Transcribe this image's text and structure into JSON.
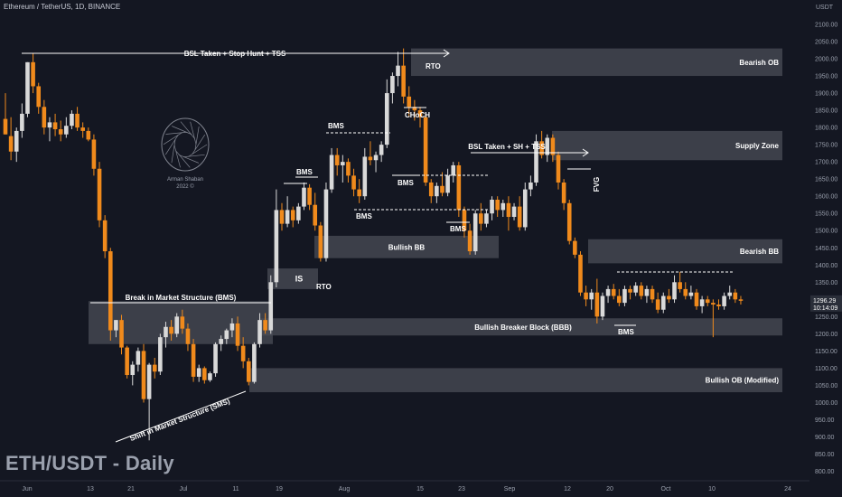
{
  "header": {
    "symbol_line": "Ethereum / TetherUS, 1D, BINANCE",
    "watermark": "ETH/USDT - Daily",
    "logo_name": "Arman Shaban",
    "logo_year": "2022 ©"
  },
  "colors": {
    "background": "#141722",
    "bull": "#d9d9d9",
    "bear": "#f08a1c",
    "zone": "#4a4d57",
    "text": "#ffffff",
    "axis_text": "#9aa0ad"
  },
  "chart_data": {
    "type": "candlestick",
    "currency_label": "USDT",
    "ylim": [
      780,
      2170
    ],
    "y_ticks": [
      800,
      850,
      900,
      950,
      1000,
      1050,
      1100,
      1150,
      1200,
      1250,
      1300,
      1350,
      1400,
      1450,
      1500,
      1550,
      1600,
      1650,
      1700,
      1750,
      1800,
      1850,
      1900,
      1950,
      2000,
      2050,
      2100
    ],
    "current_price": "1296.29",
    "countdown": "10:14:09",
    "x_ticks": [
      "Jun",
      "13",
      "21",
      "Jul",
      "11",
      "19",
      "Aug",
      "15",
      "23",
      "Sep",
      "12",
      "20",
      "Oct",
      "10",
      "24"
    ],
    "candles": [
      {
        "o": 1825,
        "h": 1900,
        "l": 1780,
        "c": 1780
      },
      {
        "o": 1775,
        "h": 1830,
        "l": 1705,
        "c": 1730
      },
      {
        "o": 1730,
        "h": 1800,
        "l": 1700,
        "c": 1790
      },
      {
        "o": 1790,
        "h": 1870,
        "l": 1770,
        "c": 1840
      },
      {
        "o": 1840,
        "h": 1990,
        "l": 1830,
        "c": 1990
      },
      {
        "o": 1990,
        "h": 2015,
        "l": 1900,
        "c": 1920
      },
      {
        "o": 1920,
        "h": 1930,
        "l": 1840,
        "c": 1860
      },
      {
        "o": 1860,
        "h": 1880,
        "l": 1780,
        "c": 1800
      },
      {
        "o": 1800,
        "h": 1830,
        "l": 1760,
        "c": 1815
      },
      {
        "o": 1815,
        "h": 1840,
        "l": 1775,
        "c": 1795
      },
      {
        "o": 1795,
        "h": 1820,
        "l": 1760,
        "c": 1780
      },
      {
        "o": 1780,
        "h": 1830,
        "l": 1770,
        "c": 1805
      },
      {
        "o": 1805,
        "h": 1850,
        "l": 1795,
        "c": 1840
      },
      {
        "o": 1840,
        "h": 1860,
        "l": 1790,
        "c": 1800
      },
      {
        "o": 1800,
        "h": 1815,
        "l": 1770,
        "c": 1790
      },
      {
        "o": 1790,
        "h": 1800,
        "l": 1760,
        "c": 1765
      },
      {
        "o": 1765,
        "h": 1780,
        "l": 1660,
        "c": 1680
      },
      {
        "o": 1680,
        "h": 1700,
        "l": 1510,
        "c": 1530
      },
      {
        "o": 1530,
        "h": 1545,
        "l": 1420,
        "c": 1440
      },
      {
        "o": 1440,
        "h": 1450,
        "l": 1180,
        "c": 1210
      },
      {
        "o": 1210,
        "h": 1240,
        "l": 1190,
        "c": 1240
      },
      {
        "o": 1240,
        "h": 1255,
        "l": 1140,
        "c": 1160
      },
      {
        "o": 1160,
        "h": 1165,
        "l": 1070,
        "c": 1080
      },
      {
        "o": 1080,
        "h": 1120,
        "l": 1050,
        "c": 1110
      },
      {
        "o": 1110,
        "h": 1160,
        "l": 1090,
        "c": 1150
      },
      {
        "o": 1150,
        "h": 1170,
        "l": 1000,
        "c": 1010
      },
      {
        "o": 1010,
        "h": 1115,
        "l": 890,
        "c": 1110
      },
      {
        "o": 1110,
        "h": 1130,
        "l": 1070,
        "c": 1090
      },
      {
        "o": 1090,
        "h": 1200,
        "l": 1080,
        "c": 1190
      },
      {
        "o": 1190,
        "h": 1235,
        "l": 1160,
        "c": 1220
      },
      {
        "o": 1220,
        "h": 1240,
        "l": 1180,
        "c": 1200
      },
      {
        "o": 1200,
        "h": 1260,
        "l": 1190,
        "c": 1250
      },
      {
        "o": 1250,
        "h": 1270,
        "l": 1200,
        "c": 1215
      },
      {
        "o": 1215,
        "h": 1230,
        "l": 1150,
        "c": 1170
      },
      {
        "o": 1170,
        "h": 1185,
        "l": 1060,
        "c": 1075
      },
      {
        "o": 1075,
        "h": 1110,
        "l": 1060,
        "c": 1100
      },
      {
        "o": 1100,
        "h": 1105,
        "l": 1055,
        "c": 1065
      },
      {
        "o": 1065,
        "h": 1090,
        "l": 1060,
        "c": 1085
      },
      {
        "o": 1085,
        "h": 1175,
        "l": 1075,
        "c": 1170
      },
      {
        "o": 1170,
        "h": 1195,
        "l": 1150,
        "c": 1185
      },
      {
        "o": 1185,
        "h": 1215,
        "l": 1170,
        "c": 1210
      },
      {
        "o": 1210,
        "h": 1245,
        "l": 1190,
        "c": 1230
      },
      {
        "o": 1230,
        "h": 1250,
        "l": 1150,
        "c": 1165
      },
      {
        "o": 1165,
        "h": 1190,
        "l": 1100,
        "c": 1120
      },
      {
        "o": 1120,
        "h": 1130,
        "l": 1050,
        "c": 1060
      },
      {
        "o": 1060,
        "h": 1175,
        "l": 1055,
        "c": 1170
      },
      {
        "o": 1170,
        "h": 1260,
        "l": 1160,
        "c": 1240
      },
      {
        "o": 1240,
        "h": 1260,
        "l": 1200,
        "c": 1210
      },
      {
        "o": 1210,
        "h": 1370,
        "l": 1200,
        "c": 1350
      },
      {
        "o": 1350,
        "h": 1620,
        "l": 1335,
        "c": 1560
      },
      {
        "o": 1560,
        "h": 1580,
        "l": 1500,
        "c": 1520
      },
      {
        "o": 1520,
        "h": 1600,
        "l": 1510,
        "c": 1560
      },
      {
        "o": 1560,
        "h": 1570,
        "l": 1510,
        "c": 1530
      },
      {
        "o": 1530,
        "h": 1580,
        "l": 1520,
        "c": 1570
      },
      {
        "o": 1570,
        "h": 1640,
        "l": 1560,
        "c": 1625
      },
      {
        "o": 1625,
        "h": 1635,
        "l": 1560,
        "c": 1575
      },
      {
        "o": 1575,
        "h": 1610,
        "l": 1500,
        "c": 1515
      },
      {
        "o": 1515,
        "h": 1525,
        "l": 1410,
        "c": 1420
      },
      {
        "o": 1420,
        "h": 1640,
        "l": 1410,
        "c": 1620
      },
      {
        "o": 1620,
        "h": 1740,
        "l": 1610,
        "c": 1720
      },
      {
        "o": 1720,
        "h": 1740,
        "l": 1660,
        "c": 1690
      },
      {
        "o": 1690,
        "h": 1720,
        "l": 1640,
        "c": 1700
      },
      {
        "o": 1700,
        "h": 1710,
        "l": 1640,
        "c": 1660
      },
      {
        "o": 1660,
        "h": 1680,
        "l": 1600,
        "c": 1620
      },
      {
        "o": 1620,
        "h": 1650,
        "l": 1580,
        "c": 1600
      },
      {
        "o": 1600,
        "h": 1740,
        "l": 1590,
        "c": 1715
      },
      {
        "o": 1715,
        "h": 1760,
        "l": 1690,
        "c": 1705
      },
      {
        "o": 1705,
        "h": 1730,
        "l": 1670,
        "c": 1720
      },
      {
        "o": 1720,
        "h": 1760,
        "l": 1700,
        "c": 1750
      },
      {
        "o": 1750,
        "h": 1940,
        "l": 1740,
        "c": 1900
      },
      {
        "o": 1900,
        "h": 1960,
        "l": 1870,
        "c": 1950
      },
      {
        "o": 1950,
        "h": 2020,
        "l": 1920,
        "c": 1980
      },
      {
        "o": 1980,
        "h": 2030,
        "l": 1870,
        "c": 1890
      },
      {
        "o": 1890,
        "h": 1920,
        "l": 1830,
        "c": 1860
      },
      {
        "o": 1860,
        "h": 1880,
        "l": 1820,
        "c": 1850
      },
      {
        "o": 1850,
        "h": 1860,
        "l": 1800,
        "c": 1830
      },
      {
        "o": 1830,
        "h": 1840,
        "l": 1630,
        "c": 1640
      },
      {
        "o": 1640,
        "h": 1650,
        "l": 1580,
        "c": 1600
      },
      {
        "o": 1600,
        "h": 1640,
        "l": 1580,
        "c": 1630
      },
      {
        "o": 1630,
        "h": 1670,
        "l": 1600,
        "c": 1610
      },
      {
        "o": 1610,
        "h": 1680,
        "l": 1600,
        "c": 1660
      },
      {
        "o": 1660,
        "h": 1700,
        "l": 1640,
        "c": 1690
      },
      {
        "o": 1690,
        "h": 1700,
        "l": 1540,
        "c": 1560
      },
      {
        "o": 1560,
        "h": 1570,
        "l": 1480,
        "c": 1500
      },
      {
        "o": 1500,
        "h": 1520,
        "l": 1430,
        "c": 1440
      },
      {
        "o": 1440,
        "h": 1560,
        "l": 1430,
        "c": 1550
      },
      {
        "o": 1550,
        "h": 1580,
        "l": 1500,
        "c": 1520
      },
      {
        "o": 1520,
        "h": 1560,
        "l": 1510,
        "c": 1550
      },
      {
        "o": 1550,
        "h": 1600,
        "l": 1530,
        "c": 1590
      },
      {
        "o": 1590,
        "h": 1600,
        "l": 1540,
        "c": 1560
      },
      {
        "o": 1560,
        "h": 1590,
        "l": 1540,
        "c": 1580
      },
      {
        "o": 1580,
        "h": 1600,
        "l": 1500,
        "c": 1540
      },
      {
        "o": 1540,
        "h": 1580,
        "l": 1530,
        "c": 1570
      },
      {
        "o": 1570,
        "h": 1600,
        "l": 1500,
        "c": 1510
      },
      {
        "o": 1510,
        "h": 1640,
        "l": 1500,
        "c": 1620
      },
      {
        "o": 1620,
        "h": 1660,
        "l": 1600,
        "c": 1640
      },
      {
        "o": 1640,
        "h": 1780,
        "l": 1630,
        "c": 1760
      },
      {
        "o": 1760,
        "h": 1790,
        "l": 1710,
        "c": 1720
      },
      {
        "o": 1720,
        "h": 1780,
        "l": 1700,
        "c": 1770
      },
      {
        "o": 1770,
        "h": 1780,
        "l": 1700,
        "c": 1720
      },
      {
        "o": 1720,
        "h": 1730,
        "l": 1620,
        "c": 1640
      },
      {
        "o": 1640,
        "h": 1650,
        "l": 1560,
        "c": 1580
      },
      {
        "o": 1580,
        "h": 1590,
        "l": 1460,
        "c": 1470
      },
      {
        "o": 1470,
        "h": 1480,
        "l": 1420,
        "c": 1430
      },
      {
        "o": 1430,
        "h": 1440,
        "l": 1310,
        "c": 1320
      },
      {
        "o": 1320,
        "h": 1340,
        "l": 1280,
        "c": 1300
      },
      {
        "o": 1300,
        "h": 1330,
        "l": 1270,
        "c": 1320
      },
      {
        "o": 1320,
        "h": 1360,
        "l": 1230,
        "c": 1250
      },
      {
        "o": 1250,
        "h": 1320,
        "l": 1240,
        "c": 1310
      },
      {
        "o": 1310,
        "h": 1340,
        "l": 1290,
        "c": 1330
      },
      {
        "o": 1330,
        "h": 1345,
        "l": 1300,
        "c": 1310
      },
      {
        "o": 1310,
        "h": 1330,
        "l": 1280,
        "c": 1290
      },
      {
        "o": 1290,
        "h": 1340,
        "l": 1280,
        "c": 1330
      },
      {
        "o": 1330,
        "h": 1340,
        "l": 1300,
        "c": 1320
      },
      {
        "o": 1320,
        "h": 1350,
        "l": 1310,
        "c": 1340
      },
      {
        "o": 1340,
        "h": 1350,
        "l": 1300,
        "c": 1310
      },
      {
        "o": 1310,
        "h": 1340,
        "l": 1290,
        "c": 1330
      },
      {
        "o": 1330,
        "h": 1340,
        "l": 1290,
        "c": 1300
      },
      {
        "o": 1300,
        "h": 1320,
        "l": 1260,
        "c": 1270
      },
      {
        "o": 1270,
        "h": 1320,
        "l": 1260,
        "c": 1310
      },
      {
        "o": 1310,
        "h": 1330,
        "l": 1290,
        "c": 1300
      },
      {
        "o": 1300,
        "h": 1370,
        "l": 1290,
        "c": 1350
      },
      {
        "o": 1350,
        "h": 1380,
        "l": 1320,
        "c": 1330
      },
      {
        "o": 1330,
        "h": 1350,
        "l": 1300,
        "c": 1310
      },
      {
        "o": 1310,
        "h": 1340,
        "l": 1300,
        "c": 1320
      },
      {
        "o": 1320,
        "h": 1330,
        "l": 1270,
        "c": 1280
      },
      {
        "o": 1280,
        "h": 1310,
        "l": 1260,
        "c": 1300
      },
      {
        "o": 1300,
        "h": 1310,
        "l": 1280,
        "c": 1290
      },
      {
        "o": 1290,
        "h": 1300,
        "l": 1190,
        "c": 1285
      },
      {
        "o": 1285,
        "h": 1300,
        "l": 1270,
        "c": 1280
      },
      {
        "o": 1280,
        "h": 1320,
        "l": 1270,
        "c": 1310
      },
      {
        "o": 1310,
        "h": 1340,
        "l": 1300,
        "c": 1320
      },
      {
        "o": 1320,
        "h": 1330,
        "l": 1290,
        "c": 1300
      },
      {
        "o": 1300,
        "h": 1310,
        "l": 1285,
        "c": 1296
      }
    ],
    "zones": [
      {
        "label": "Bearish OB",
        "y1": 1950,
        "y2": 2030
      },
      {
        "label": "Supply Zone",
        "y1": 1705,
        "y2": 1790
      },
      {
        "label": "Bearish BB",
        "y1": 1405,
        "y2": 1475
      },
      {
        "label": "Bullish BB",
        "y1": 1420,
        "y2": 1485
      },
      {
        "label": "Bullish Breaker Block (BBB)",
        "y1": 1195,
        "y2": 1245
      },
      {
        "label": "Bullish OB (Modified)",
        "y1": 1030,
        "y2": 1100
      },
      {
        "label": "",
        "y1": 1170,
        "y2": 1295
      },
      {
        "label": "IS",
        "y1": 1330,
        "y2": 1390
      }
    ],
    "annotations": [
      "BSL Taken + Stop Hunt + TSS",
      "RTO",
      "CHoCH",
      "BMS",
      "BMS",
      "BMS",
      "BMS",
      "BMS",
      "BSL Taken + SH + TSS",
      "FVG",
      "RTO",
      "Break in Market Structure (BMS)",
      "Shift in Market Structure (SMS)"
    ]
  }
}
